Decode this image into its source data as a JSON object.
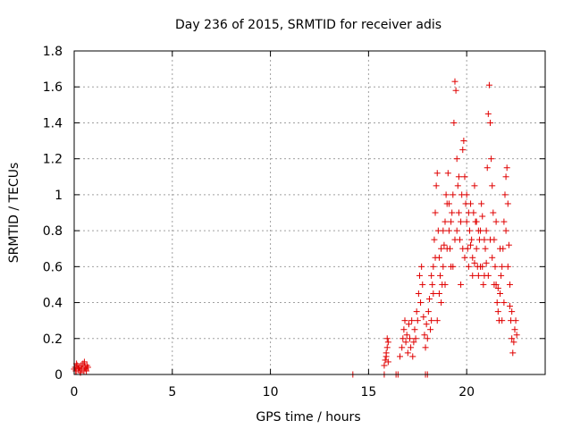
{
  "chart_data": {
    "type": "scatter",
    "title": "Day 236 of 2015, SRMTID for receiver adis",
    "xlabel": "GPS time / hours",
    "ylabel": "SRMTID / TECUs",
    "xlim": [
      0,
      24
    ],
    "ylim": [
      0,
      1.8
    ],
    "xticks": [
      0,
      5,
      10,
      15,
      20
    ],
    "xtick_labels": [
      "0",
      "5",
      "10",
      "15",
      "20"
    ],
    "yticks": [
      0,
      0.2,
      0.4,
      0.6,
      0.8,
      1.0,
      1.2,
      1.4,
      1.6,
      1.8
    ],
    "ytick_labels": [
      "0",
      "0.2",
      "0.4",
      "0.6",
      "0.8",
      "1",
      "1.2",
      "1.4",
      "1.6",
      "1.8"
    ],
    "grid": true,
    "marker": "+",
    "color": "#e00000",
    "series": [
      {
        "name": "SRMTID",
        "points": [
          [
            0.0,
            0.03
          ],
          [
            0.05,
            0.04
          ],
          [
            0.1,
            0.02
          ],
          [
            0.15,
            0.05
          ],
          [
            0.2,
            0.03
          ],
          [
            0.25,
            0.04
          ],
          [
            0.3,
            0.02
          ],
          [
            0.35,
            0.05
          ],
          [
            0.4,
            0.03
          ],
          [
            0.45,
            0.06
          ],
          [
            0.5,
            0.02
          ],
          [
            0.55,
            0.04
          ],
          [
            0.6,
            0.03
          ],
          [
            0.65,
            0.05
          ],
          [
            0.7,
            0.04
          ],
          [
            0.12,
            0.06
          ],
          [
            0.32,
            0.01
          ],
          [
            0.52,
            0.07
          ],
          [
            0.62,
            0.02
          ],
          [
            0.08,
            0.02
          ],
          [
            14.2,
            0.0
          ],
          [
            15.8,
            0.0
          ],
          [
            16.4,
            0.0
          ],
          [
            16.5,
            0.0
          ],
          [
            17.9,
            0.0
          ],
          [
            18.0,
            0.0
          ],
          [
            15.8,
            0.05
          ],
          [
            15.85,
            0.08
          ],
          [
            15.9,
            0.12
          ],
          [
            15.95,
            0.15
          ],
          [
            16.0,
            0.18
          ],
          [
            15.9,
            0.1
          ],
          [
            16.0,
            0.07
          ],
          [
            15.95,
            0.2
          ],
          [
            16.6,
            0.1
          ],
          [
            16.7,
            0.15
          ],
          [
            16.75,
            0.2
          ],
          [
            16.8,
            0.25
          ],
          [
            16.85,
            0.3
          ],
          [
            16.9,
            0.18
          ],
          [
            16.95,
            0.22
          ],
          [
            17.0,
            0.12
          ],
          [
            17.05,
            0.28
          ],
          [
            17.1,
            0.2
          ],
          [
            17.15,
            0.15
          ],
          [
            17.2,
            0.3
          ],
          [
            17.25,
            0.1
          ],
          [
            17.3,
            0.18
          ],
          [
            17.35,
            0.25
          ],
          [
            17.4,
            0.2
          ],
          [
            17.45,
            0.35
          ],
          [
            17.5,
            0.3
          ],
          [
            17.55,
            0.45
          ],
          [
            17.6,
            0.55
          ],
          [
            17.65,
            0.4
          ],
          [
            17.7,
            0.6
          ],
          [
            17.75,
            0.5
          ],
          [
            17.8,
            0.32
          ],
          [
            17.85,
            0.22
          ],
          [
            17.9,
            0.15
          ],
          [
            17.95,
            0.28
          ],
          [
            18.0,
            0.2
          ],
          [
            18.05,
            0.35
          ],
          [
            18.1,
            0.42
          ],
          [
            18.15,
            0.25
          ],
          [
            18.2,
            0.3
          ],
          [
            18.25,
            0.5
          ],
          [
            18.3,
            0.6
          ],
          [
            18.35,
            0.75
          ],
          [
            18.4,
            0.9
          ],
          [
            18.45,
            1.05
          ],
          [
            18.5,
            1.12
          ],
          [
            18.55,
            0.8
          ],
          [
            18.6,
            0.65
          ],
          [
            18.65,
            0.55
          ],
          [
            18.7,
            0.4
          ],
          [
            18.75,
            0.5
          ],
          [
            18.8,
            0.6
          ],
          [
            18.85,
            0.72
          ],
          [
            18.9,
            0.85
          ],
          [
            18.95,
            1.0
          ],
          [
            19.0,
            0.95
          ],
          [
            19.05,
            1.12
          ],
          [
            19.1,
            0.8
          ],
          [
            19.15,
            0.7
          ],
          [
            19.2,
            0.6
          ],
          [
            19.25,
            0.9
          ],
          [
            19.3,
            1.0
          ],
          [
            19.35,
            1.4
          ],
          [
            19.4,
            1.63
          ],
          [
            19.45,
            1.58
          ],
          [
            19.5,
            1.2
          ],
          [
            19.55,
            1.05
          ],
          [
            19.6,
            0.9
          ],
          [
            19.65,
            0.75
          ],
          [
            19.7,
            0.85
          ],
          [
            19.75,
            1.0
          ],
          [
            19.8,
            1.25
          ],
          [
            19.85,
            1.3
          ],
          [
            19.9,
            1.1
          ],
          [
            19.95,
            0.95
          ],
          [
            20.0,
            0.85
          ],
          [
            20.05,
            0.7
          ],
          [
            20.1,
            0.6
          ],
          [
            20.15,
            0.8
          ],
          [
            20.2,
            0.95
          ],
          [
            20.25,
            0.75
          ],
          [
            20.3,
            0.65
          ],
          [
            20.35,
            0.9
          ],
          [
            20.4,
            1.05
          ],
          [
            20.45,
            0.85
          ],
          [
            20.5,
            0.7
          ],
          [
            20.55,
            0.6
          ],
          [
            20.6,
            0.55
          ],
          [
            20.65,
            0.75
          ],
          [
            20.7,
            0.8
          ],
          [
            20.75,
            0.95
          ],
          [
            20.8,
            0.6
          ],
          [
            20.85,
            0.5
          ],
          [
            20.9,
            0.55
          ],
          [
            20.95,
            0.7
          ],
          [
            21.0,
            0.8
          ],
          [
            21.05,
            1.15
          ],
          [
            21.1,
            1.45
          ],
          [
            21.15,
            1.61
          ],
          [
            21.2,
            1.4
          ],
          [
            21.25,
            1.2
          ],
          [
            21.3,
            1.05
          ],
          [
            21.35,
            0.9
          ],
          [
            21.4,
            0.75
          ],
          [
            21.45,
            0.6
          ],
          [
            21.5,
            0.5
          ],
          [
            21.55,
            0.4
          ],
          [
            21.6,
            0.35
          ],
          [
            21.65,
            0.3
          ],
          [
            21.7,
            0.45
          ],
          [
            21.75,
            0.55
          ],
          [
            21.8,
            0.6
          ],
          [
            21.85,
            0.7
          ],
          [
            21.9,
            0.85
          ],
          [
            21.95,
            1.0
          ],
          [
            22.0,
            1.1
          ],
          [
            22.05,
            1.15
          ],
          [
            22.1,
            0.95
          ],
          [
            22.15,
            0.72
          ],
          [
            22.2,
            0.5
          ],
          [
            22.25,
            0.3
          ],
          [
            22.3,
            0.2
          ],
          [
            22.35,
            0.12
          ],
          [
            22.4,
            0.18
          ],
          [
            22.45,
            0.25
          ],
          [
            22.5,
            0.3
          ],
          [
            22.55,
            0.22
          ],
          [
            18.3,
            0.45
          ],
          [
            18.5,
            0.3
          ],
          [
            18.7,
            0.7
          ],
          [
            18.9,
            0.5
          ],
          [
            19.1,
            0.95
          ],
          [
            19.3,
            0.6
          ],
          [
            19.5,
            0.8
          ],
          [
            19.7,
            0.5
          ],
          [
            19.9,
            0.65
          ],
          [
            20.1,
            0.9
          ],
          [
            20.3,
            0.55
          ],
          [
            20.5,
            0.85
          ],
          [
            20.7,
            0.6
          ],
          [
            20.9,
            0.75
          ],
          [
            21.1,
            0.55
          ],
          [
            21.3,
            0.65
          ],
          [
            21.5,
            0.85
          ],
          [
            21.7,
            0.7
          ],
          [
            21.9,
            0.4
          ],
          [
            22.1,
            0.6
          ],
          [
            22.3,
            0.35
          ],
          [
            18.2,
            0.55
          ],
          [
            18.4,
            0.65
          ],
          [
            18.6,
            0.45
          ],
          [
            18.8,
            0.8
          ],
          [
            19.0,
            0.7
          ],
          [
            19.2,
            0.85
          ],
          [
            19.4,
            0.75
          ],
          [
            19.6,
            1.1
          ],
          [
            19.8,
            0.7
          ],
          [
            20.0,
            1.0
          ],
          [
            20.2,
            0.72
          ],
          [
            20.4,
            0.62
          ],
          [
            20.6,
            0.8
          ],
          [
            20.8,
            0.88
          ],
          [
            21.0,
            0.62
          ],
          [
            21.2,
            0.75
          ],
          [
            21.4,
            0.5
          ],
          [
            21.6,
            0.48
          ],
          [
            21.8,
            0.3
          ],
          [
            22.0,
            0.8
          ],
          [
            22.2,
            0.38
          ]
        ]
      }
    ]
  }
}
